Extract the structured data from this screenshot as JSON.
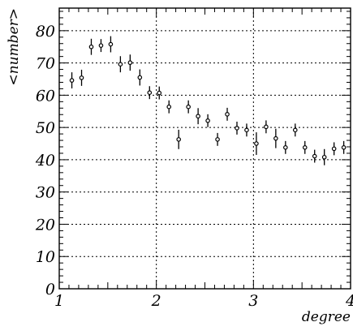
{
  "chart_data": {
    "type": "scatter",
    "title": "",
    "xlabel": "degree",
    "ylabel": "<number>",
    "xlim": [
      1,
      4
    ],
    "ylim": [
      0,
      87
    ],
    "grid": true,
    "x_ticks": [
      1,
      2,
      3,
      4
    ],
    "x_tick_labels": [
      "1",
      "2",
      "3",
      "4"
    ],
    "y_ticks": [
      0,
      10,
      20,
      30,
      40,
      50,
      60,
      70,
      80
    ],
    "y_tick_labels": [
      "0",
      "10",
      "20",
      "30",
      "40",
      "50",
      "60",
      "70",
      "80"
    ],
    "series": [
      {
        "x": [
          1.13,
          1.23,
          1.33,
          1.43,
          1.53,
          1.63,
          1.73,
          1.83,
          1.93,
          2.03,
          2.13,
          2.23,
          2.33,
          2.43,
          2.53,
          2.63,
          2.73,
          2.83,
          2.93,
          3.03,
          3.13,
          3.23,
          3.33,
          3.43,
          3.53,
          3.63,
          3.73,
          3.83,
          3.93
        ],
        "y": [
          64.6,
          65.4,
          75.0,
          75.4,
          75.8,
          69.6,
          70.1,
          65.5,
          60.8,
          60.7,
          56.4,
          46.3,
          56.4,
          53.5,
          52.1,
          46.3,
          54.1,
          49.8,
          49.2,
          45.0,
          50.2,
          46.6,
          43.8,
          49.2,
          43.8,
          41.1,
          40.8,
          43.4,
          43.8
        ],
        "yerr": [
          2.5,
          2.5,
          2.5,
          2.0,
          2.5,
          2.5,
          2.5,
          2.5,
          2.0,
          2.0,
          2.0,
          3.0,
          2.0,
          2.5,
          2.0,
          2.0,
          2.0,
          2.0,
          2.0,
          3.5,
          2.0,
          3.0,
          2.0,
          2.0,
          2.0,
          2.0,
          2.5,
          2.0,
          2.0
        ]
      }
    ]
  }
}
